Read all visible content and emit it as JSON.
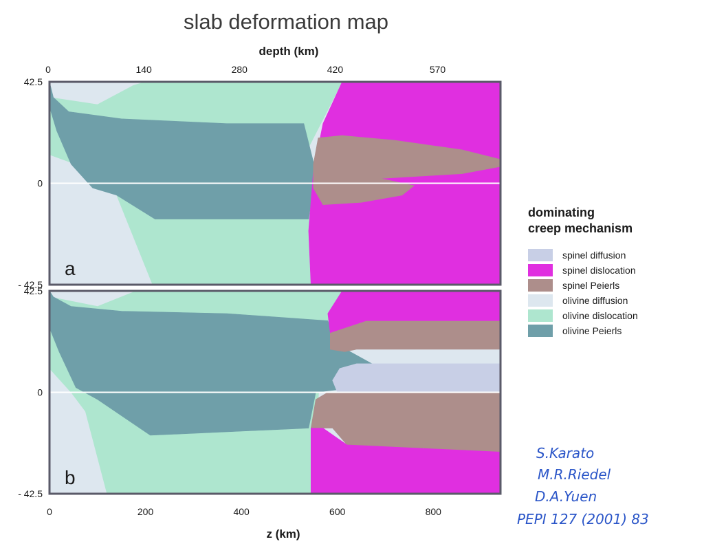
{
  "chart_data": {
    "type": "heatmap",
    "title": "slab deformation map",
    "top_axis": {
      "label": "depth (km)",
      "ticks": [
        {
          "value": 0,
          "label": "0"
        },
        {
          "value": 140,
          "label": "140"
        },
        {
          "value": 280,
          "label": "280"
        },
        {
          "value": 420,
          "label": "420"
        },
        {
          "value": 570,
          "label": "570"
        }
      ]
    },
    "bottom_axis": {
      "label": "z (km)",
      "ticks": [
        {
          "value": 0,
          "label": "0"
        },
        {
          "value": 200,
          "label": "200"
        },
        {
          "value": 400,
          "label": "400"
        },
        {
          "value": 600,
          "label": "600"
        },
        {
          "value": 800,
          "label": "800"
        }
      ],
      "xlim": [
        0,
        940
      ]
    },
    "y_axis": {
      "ylim": [
        -42.5,
        42.5
      ],
      "ticks": [
        {
          "value": 42.5,
          "label": "42.5"
        },
        {
          "value": 0,
          "label": "0"
        },
        {
          "value": -42.5,
          "label": "- 42.5"
        }
      ]
    },
    "panels": [
      {
        "label": "a",
        "regions": [
          {
            "mechanism": "olivine_diffusion",
            "points": [
              [
                0,
                42.5
              ],
              [
                940,
                42.5
              ],
              [
                940,
                -42.5
              ],
              [
                0,
                -42.5
              ]
            ]
          },
          {
            "mechanism": "olivine_dislocation",
            "points": [
              [
                0,
                36
              ],
              [
                100,
                33
              ],
              [
                175,
                41
              ],
              [
                200,
                42.5
              ],
              [
                610,
                42.5
              ],
              [
                540,
                15
              ],
              [
                545,
                -42.5
              ],
              [
                215,
                -42.5
              ],
              [
                140,
                -5
              ],
              [
                95,
                5
              ],
              [
                0,
                12
              ]
            ]
          },
          {
            "mechanism": "olivine_peierls",
            "points": [
              [
                0,
                42.5
              ],
              [
                8,
                36
              ],
              [
                40,
                30
              ],
              [
                150,
                27
              ],
              [
                370,
                25
              ],
              [
                530,
                25
              ],
              [
                555,
                5
              ],
              [
                540,
                -15
              ],
              [
                220,
                -15
              ],
              [
                140,
                -5
              ],
              [
                90,
                -2
              ],
              [
                45,
                8
              ],
              [
                15,
                22
              ],
              [
                0,
                32
              ]
            ]
          },
          {
            "mechanism": "spinel_dislocation",
            "points": [
              [
                610,
                42.5
              ],
              [
                940,
                42.5
              ],
              [
                940,
                -42.5
              ],
              [
                545,
                -42.5
              ],
              [
                540,
                -20
              ],
              [
                550,
                5
              ],
              [
                570,
                25
              ]
            ]
          },
          {
            "mechanism": "spinel_peierls",
            "points": [
              [
                560,
                19
              ],
              [
                610,
                20
              ],
              [
                720,
                18
              ],
              [
                860,
                14
              ],
              [
                940,
                10
              ],
              [
                940,
                7
              ],
              [
                860,
                4
              ],
              [
                690,
                2
              ],
              [
                760,
                -1
              ],
              [
                735,
                -5
              ],
              [
                650,
                -8
              ],
              [
                570,
                -9
              ],
              [
                550,
                -2
              ],
              [
                550,
                8
              ]
            ]
          }
        ]
      },
      {
        "label": "b",
        "regions": [
          {
            "mechanism": "olivine_diffusion",
            "points": [
              [
                0,
                42.5
              ],
              [
                940,
                42.5
              ],
              [
                940,
                -42.5
              ],
              [
                0,
                -42.5
              ]
            ]
          },
          {
            "mechanism": "olivine_dislocation",
            "points": [
              [
                0,
                40
              ],
              [
                100,
                36
              ],
              [
                175,
                42
              ],
              [
                200,
                42.5
              ],
              [
                610,
                42.5
              ],
              [
                565,
                10
              ],
              [
                545,
                -42.5
              ],
              [
                120,
                -42.5
              ],
              [
                75,
                -8
              ],
              [
                45,
                0
              ],
              [
                0,
                10
              ]
            ]
          },
          {
            "mechanism": "olivine_peierls",
            "points": [
              [
                0,
                42.5
              ],
              [
                8,
                40
              ],
              [
                45,
                36
              ],
              [
                150,
                34
              ],
              [
                370,
                33
              ],
              [
                580,
                30
              ],
              [
                600,
                20
              ],
              [
                690,
                10
              ],
              [
                690,
                5
              ],
              [
                640,
                2
              ],
              [
                555,
                0
              ],
              [
                540,
                -15
              ],
              [
                210,
                -18
              ],
              [
                100,
                -3
              ],
              [
                55,
                2
              ],
              [
                20,
                17
              ],
              [
                0,
                27
              ]
            ]
          },
          {
            "mechanism": "spinel_diffusion",
            "points": [
              [
                605,
                10
              ],
              [
                640,
                12
              ],
              [
                940,
                12
              ],
              [
                940,
                0
              ],
              [
                600,
                0
              ],
              [
                590,
                5
              ]
            ]
          },
          {
            "mechanism": "spinel_peierls",
            "points": [
              [
                585,
                25
              ],
              [
                660,
                30
              ],
              [
                940,
                30
              ],
              [
                940,
                18
              ],
              [
                640,
                18
              ],
              [
                615,
                17
              ],
              [
                585,
                18
              ]
            ]
          },
          {
            "mechanism": "spinel_peierls",
            "points": [
              [
                580,
                0
              ],
              [
                940,
                0
              ],
              [
                940,
                -25
              ],
              [
                620,
                -22
              ],
              [
                590,
                -15
              ],
              [
                570,
                -15
              ],
              [
                545,
                -15
              ],
              [
                555,
                -3
              ]
            ]
          },
          {
            "mechanism": "spinel_dislocation",
            "points": [
              [
                610,
                42.5
              ],
              [
                940,
                42.5
              ],
              [
                940,
                30
              ],
              [
                660,
                30
              ],
              [
                585,
                25
              ],
              [
                580,
                33
              ]
            ]
          },
          {
            "mechanism": "spinel_dislocation",
            "points": [
              [
                545,
                -15
              ],
              [
                570,
                -15
              ],
              [
                620,
                -22
              ],
              [
                940,
                -25
              ],
              [
                940,
                -42.5
              ],
              [
                545,
                -42.5
              ]
            ]
          }
        ]
      }
    ],
    "legend": {
      "title": [
        "dominating",
        "creep mechanism"
      ],
      "placement": "right",
      "items": [
        {
          "key": "spinel_diffusion",
          "label": "spinel diffusion",
          "color": "#c8cfe6"
        },
        {
          "key": "spinel_dislocation",
          "label": "spinel dislocation",
          "color": "#e02fe0"
        },
        {
          "key": "spinel_peierls",
          "label": "spinel Peierls",
          "color": "#ad8e8b"
        },
        {
          "key": "olivine_diffusion",
          "label": "olivine diffusion",
          "color": "#dde7ef"
        },
        {
          "key": "olivine_dislocation",
          "label": "olivine dislocation",
          "color": "#aee6cf"
        },
        {
          "key": "olivine_peierls",
          "label": "olivine Peierls",
          "color": "#6f9fa9"
        }
      ]
    }
  },
  "annotation": {
    "lines": [
      "S.Karato",
      "M.R.Riedel",
      "D.A.Yuen",
      "PEPI 127 (2001) 83"
    ]
  }
}
